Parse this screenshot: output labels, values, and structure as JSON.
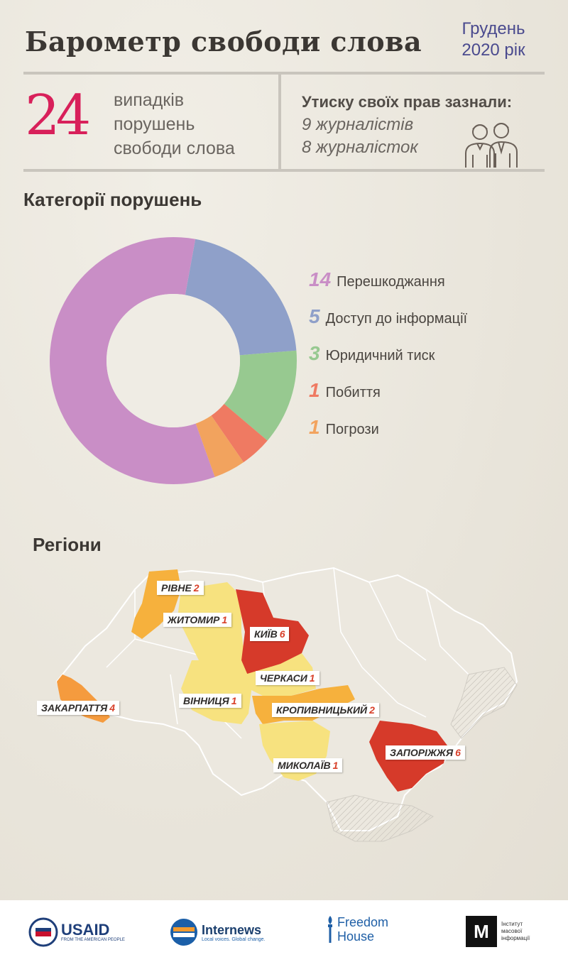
{
  "header": {
    "title": "Барометр свободи слова",
    "date_line1": "Грудень",
    "date_line2": "2020 рік"
  },
  "summary": {
    "total_cases": "24",
    "cases_line1": "випадків",
    "cases_line2": "порушень",
    "cases_line3": "свободи слова",
    "pressure_title": "Утиску своїх прав зазнали:",
    "journalists_male": "9 журналістів",
    "journalists_female": "8 журналісток"
  },
  "sections": {
    "categories_title": "Категорії порушень",
    "regions_title": "Регіони"
  },
  "chart_data": [
    {
      "type": "pie",
      "title": "Категорії порушень",
      "categories": [
        "Перешкоджання",
        "Доступ до інформації",
        "Юридичний тиск",
        "Побиття",
        "Погрози"
      ],
      "values": [
        14,
        5,
        3,
        1,
        1
      ],
      "colors": [
        "#c98ec6",
        "#8fa0c9",
        "#97c990",
        "#ef7a62",
        "#f2a35e"
      ]
    },
    {
      "type": "table",
      "title": "Регіони",
      "regions": [
        {
          "name": "РІВНЕ",
          "count": "2",
          "color": "#f6b13d"
        },
        {
          "name": "ЖИТОМИР",
          "count": "1",
          "color": "#f7e27f"
        },
        {
          "name": "КИЇВ",
          "count": "6",
          "color": "#d63a2a"
        },
        {
          "name": "ЧЕРКАСИ",
          "count": "1",
          "color": "#f7e27f"
        },
        {
          "name": "ВІННИЦЯ",
          "count": "1",
          "color": "#f7e27f"
        },
        {
          "name": "ЗАКАРПАТТЯ",
          "count": "4",
          "color": "#f59b3e"
        },
        {
          "name": "КРОПИВНИЦЬКИЙ",
          "count": "2",
          "color": "#f6b13d"
        },
        {
          "name": "ЗАПОРІЖЖЯ",
          "count": "6",
          "color": "#d63a2a"
        },
        {
          "name": "МИКОЛАЇВ",
          "count": "1",
          "color": "#f7e27f"
        }
      ]
    }
  ],
  "legend": [
    {
      "num": "14",
      "label": "Перешкоджання",
      "color": "#c98ec6"
    },
    {
      "num": "5",
      "label": "Доступ до інформації",
      "color": "#8fa0c9"
    },
    {
      "num": "3",
      "label": "Юридичний тиск",
      "color": "#97c990"
    },
    {
      "num": "1",
      "label": "Побиття",
      "color": "#ef7a62"
    },
    {
      "num": "1",
      "label": "Погрози",
      "color": "#f2a35e"
    }
  ],
  "footer": {
    "usaid": "USAID",
    "usaid_sub": "FROM THE AMERICAN PEOPLE",
    "internews": "Internews",
    "internews_sub": "Local voices. Global change.",
    "freedom_line1": "Freedom",
    "freedom_line2": "House",
    "imi_line1": "Інститут",
    "imi_line2": "масової",
    "imi_line3": "інформації"
  }
}
